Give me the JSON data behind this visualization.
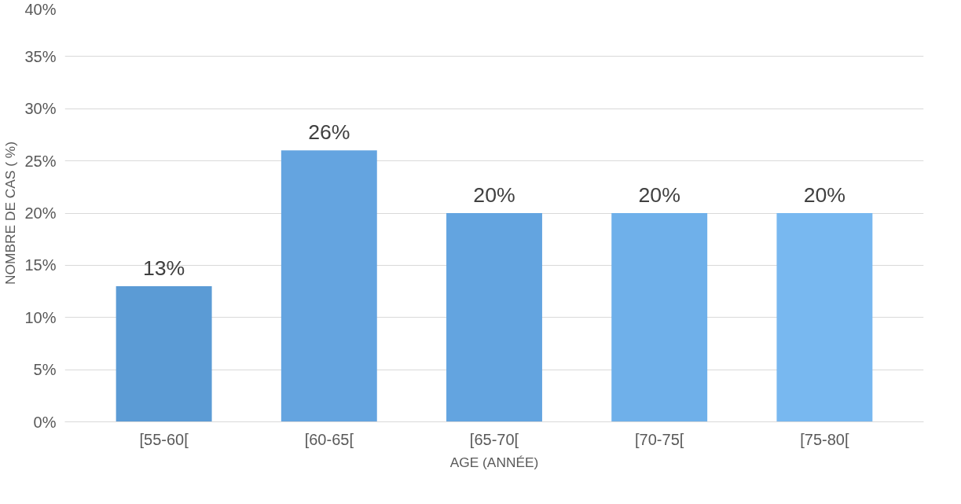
{
  "chart_data": {
    "type": "bar",
    "xlabel": "AGE (ANNÉE)",
    "ylabel": "NOMBRE DE CAS ( %)",
    "categories": [
      "[55-60[",
      "[60-65[",
      "[65-70[",
      "[70-75[",
      "[75-80["
    ],
    "values": [
      13,
      26,
      20,
      20,
      20
    ],
    "colors": [
      "#5b9bd5",
      "#64a4e0",
      "#63a4e0",
      "#6fb0ea",
      "#78b8f0"
    ],
    "value_labels": [
      "13%",
      "26%",
      "20%",
      "20%",
      "20%"
    ],
    "ylim": [
      0,
      40
    ],
    "yticks": [
      {
        "value": 0,
        "label": "0%"
      },
      {
        "value": 5,
        "label": "5%"
      },
      {
        "value": 10,
        "label": "10%"
      },
      {
        "value": 15,
        "label": "15%"
      },
      {
        "value": 20,
        "label": "20%"
      },
      {
        "value": 25,
        "label": "25%"
      },
      {
        "value": 30,
        "label": "30%"
      },
      {
        "value": 35,
        "label": "35%"
      },
      {
        "value": 40,
        "label": "40%"
      }
    ],
    "grid": "y"
  }
}
